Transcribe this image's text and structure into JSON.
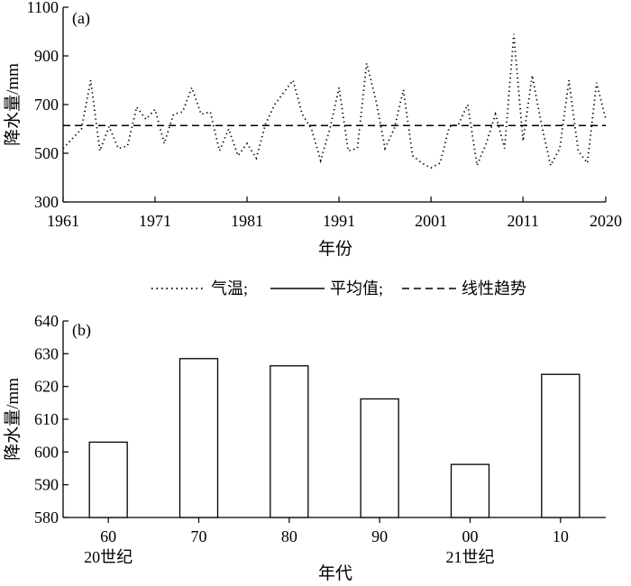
{
  "chart_data": [
    {
      "type": "line",
      "panel_label": "(a)",
      "xlabel": "年份",
      "ylabel": "降水量/mm",
      "xlim": [
        1961,
        2020
      ],
      "ylim": [
        300,
        1100
      ],
      "x_ticks": [
        1961,
        1971,
        1981,
        1991,
        2001,
        2011,
        2020
      ],
      "y_ticks": [
        300,
        500,
        700,
        900,
        1100
      ],
      "grid": false,
      "legend": {
        "position": "below",
        "entries": [
          {
            "label": "气温;",
            "style": "dotted"
          },
          {
            "label": "平均值;",
            "style": "solid"
          },
          {
            "label": "线性趋势",
            "style": "dashed"
          }
        ]
      },
      "series": [
        {
          "name": "气温",
          "style": "dotted",
          "x": [
            1961,
            1962,
            1963,
            1964,
            1965,
            1966,
            1967,
            1968,
            1969,
            1970,
            1971,
            1972,
            1973,
            1974,
            1975,
            1976,
            1977,
            1978,
            1979,
            1980,
            1981,
            1982,
            1983,
            1984,
            1985,
            1986,
            1987,
            1988,
            1989,
            1990,
            1991,
            1992,
            1993,
            1994,
            1995,
            1996,
            1997,
            1998,
            1999,
            2000,
            2001,
            2002,
            2003,
            2004,
            2005,
            2006,
            2007,
            2008,
            2009,
            2010,
            2011,
            2012,
            2013,
            2014,
            2015,
            2016,
            2017,
            2018,
            2019,
            2020
          ],
          "y": [
            520,
            560,
            600,
            800,
            510,
            610,
            520,
            530,
            690,
            640,
            680,
            540,
            660,
            670,
            770,
            660,
            670,
            510,
            600,
            490,
            540,
            480,
            620,
            700,
            750,
            800,
            660,
            600,
            470,
            600,
            770,
            510,
            520,
            870,
            720,
            520,
            600,
            760,
            490,
            460,
            440,
            460,
            610,
            620,
            700,
            450,
            540,
            660,
            520,
            990,
            550,
            820,
            620,
            450,
            520,
            800,
            510,
            460,
            790,
            640
          ]
        },
        {
          "name": "线性趋势",
          "style": "dashed",
          "x": [
            1961,
            2020
          ],
          "y": [
            614,
            614
          ]
        }
      ]
    },
    {
      "type": "bar",
      "panel_label": "(b)",
      "xlabel": "年代",
      "ylabel": "降水量/mm",
      "ylim": [
        580,
        640
      ],
      "y_ticks": [
        580,
        590,
        600,
        610,
        620,
        630,
        640
      ],
      "categories": [
        "60",
        "70",
        "80",
        "90",
        "00",
        "10"
      ],
      "century_labels": [
        "20世纪",
        "",
        "",
        "",
        "21世纪",
        ""
      ],
      "values": [
        603,
        628.5,
        626.3,
        616.2,
        596.2,
        623.7
      ],
      "grid": false
    }
  ]
}
